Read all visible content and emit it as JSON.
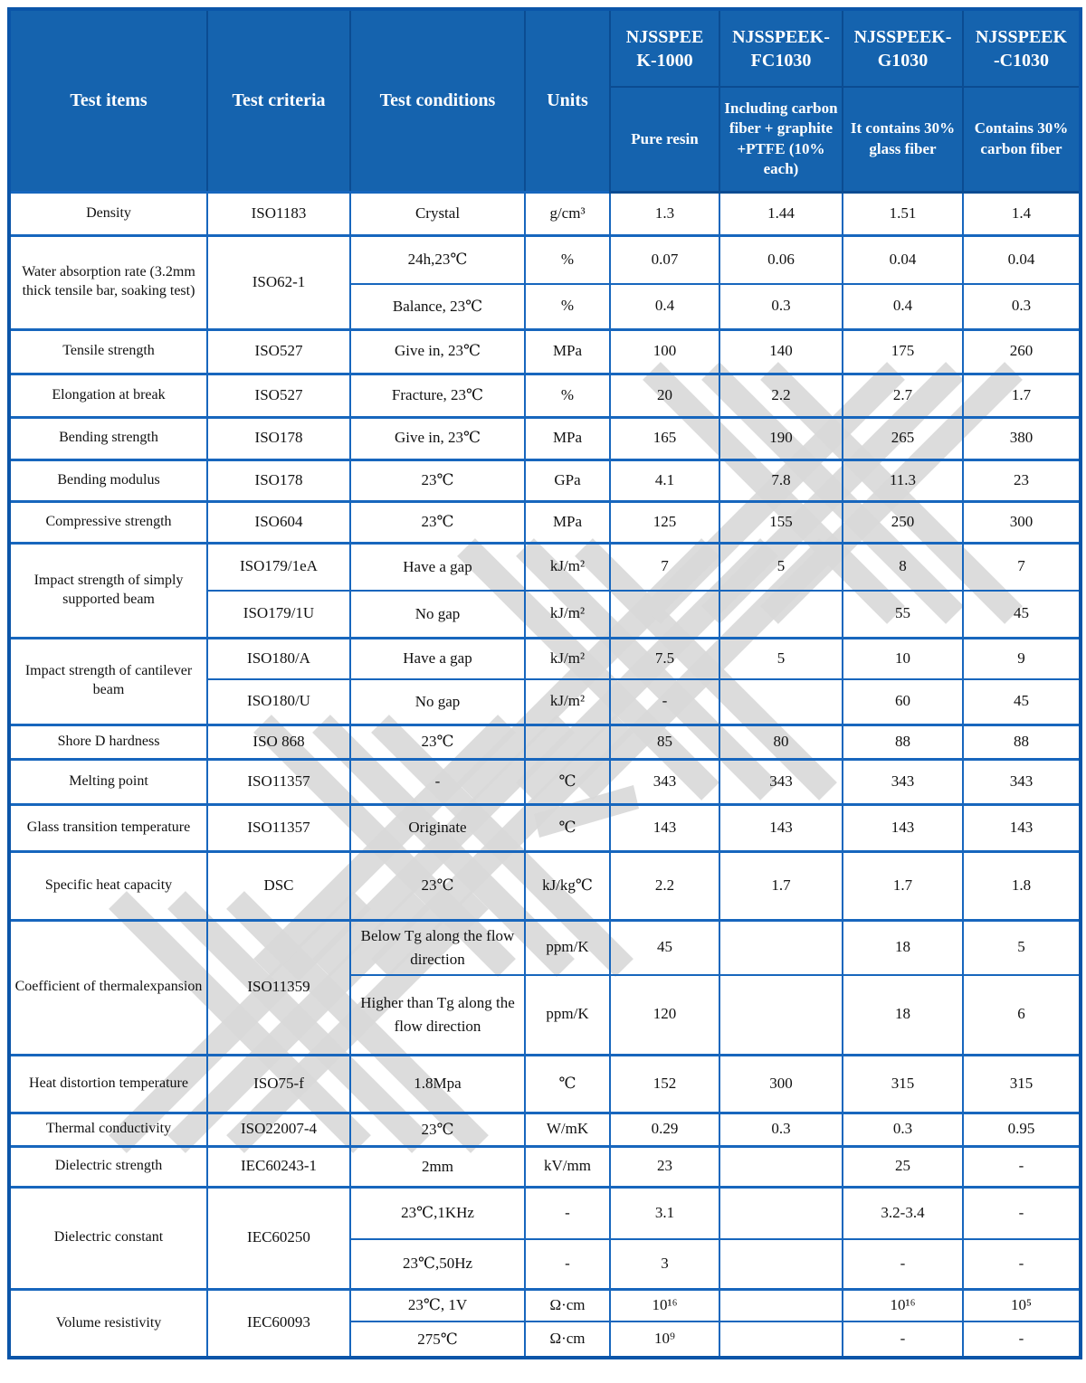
{
  "colors": {
    "header_bg": "#1563ae",
    "line": "#1766bd",
    "line_dark": "#0b4c92",
    "frame": "#0b55a8",
    "text": "#111111",
    "watermark": "#d8d8d8"
  },
  "watermark": {
    "text": "南京-首塑"
  },
  "header": {
    "columns": [
      "Test items",
      "Test criteria",
      "Test conditions",
      "Units"
    ],
    "products": [
      {
        "name": "NJSSPEE\nK-1000",
        "desc": "Pure resin"
      },
      {
        "name": "NJSSPEEK-\nFC1030",
        "desc": "Including carbon fiber + graphite +PTFE (10% each)"
      },
      {
        "name": "NJSSPEEK-\nG1030",
        "desc": "It contains 30% glass fiber"
      },
      {
        "name": "NJSSPEEK\n-C1030",
        "desc": "Contains 30% carbon fiber"
      }
    ]
  },
  "rows": [
    {
      "item": "Density",
      "criteria": "ISO1183",
      "condition": "Crystal",
      "unit": "g/cm³",
      "values": [
        "1.3",
        "1.44",
        "1.51",
        "1.4"
      ],
      "group": true
    },
    {
      "item": "Water absorption rate (3.2mm thick tensile bar, soaking test)",
      "item_span": 2,
      "criteria": "ISO62-1",
      "criteria_span": 2,
      "condition": "24h,23℃",
      "unit": "%",
      "values": [
        "0.07",
        "0.06",
        "0.04",
        "0.04"
      ],
      "group": true
    },
    {
      "condition": "Balance, 23℃",
      "unit": "%",
      "values": [
        "0.4",
        "0.3",
        "0.4",
        "0.3"
      ]
    },
    {
      "item": "Tensile strength",
      "criteria": "ISO527",
      "condition": "Give in, 23℃",
      "unit": "MPa",
      "values": [
        "100",
        "140",
        "175",
        "260"
      ],
      "group": true
    },
    {
      "item": "Elongation at break",
      "criteria": "ISO527",
      "condition": "Fracture, 23℃",
      "unit": "%",
      "values": [
        "20",
        "2.2",
        "2.7",
        "1.7"
      ],
      "group": true
    },
    {
      "item": "Bending strength",
      "criteria": "ISO178",
      "condition": "Give in, 23℃",
      "unit": "MPa",
      "values": [
        "165",
        "190",
        "265",
        "380"
      ],
      "group": true
    },
    {
      "item": "Bending modulus",
      "criteria": "ISO178",
      "condition": "23℃",
      "unit": "GPa",
      "values": [
        "4.1",
        "7.8",
        "11.3",
        "23"
      ],
      "group": true
    },
    {
      "item": "Compressive strength",
      "criteria": "ISO604",
      "condition": "23℃",
      "unit": "MPa",
      "values": [
        "125",
        "155",
        "250",
        "300"
      ],
      "group": true
    },
    {
      "item": "Impact strength of simply supported beam",
      "item_span": 2,
      "criteria": "ISO179/1eA",
      "condition": "Have a gap",
      "unit": "kJ/m²",
      "values": [
        "7",
        "5",
        "8",
        "7"
      ],
      "group": true
    },
    {
      "criteria": "ISO179/1U",
      "condition": "No gap",
      "unit": "kJ/m²",
      "values": [
        "",
        "",
        "55",
        "45"
      ]
    },
    {
      "item": "Impact strength of cantilever beam",
      "item_span": 2,
      "criteria": "ISO180/A",
      "condition": "Have a gap",
      "unit": "kJ/m²",
      "values": [
        "7.5",
        "5",
        "10",
        "9"
      ],
      "group": true
    },
    {
      "criteria": "ISO180/U",
      "condition": "No gap",
      "unit": "kJ/m²",
      "values": [
        "-",
        "",
        "60",
        "45"
      ]
    },
    {
      "item": "Shore D hardness",
      "criteria": "ISO 868",
      "condition": "23℃",
      "unit": "",
      "values": [
        "85",
        "80",
        "88",
        "88"
      ],
      "group": true
    },
    {
      "item": "Melting point",
      "criteria": "ISO11357",
      "condition": "-",
      "unit": "℃",
      "values": [
        "343",
        "343",
        "343",
        "343"
      ],
      "group": true
    },
    {
      "item": "Glass transition temperature",
      "criteria": "ISO11357",
      "condition": "Originate",
      "unit": "℃",
      "values": [
        "143",
        "143",
        "143",
        "143"
      ],
      "group": true
    },
    {
      "item": "Specific heat capacity",
      "criteria": "DSC",
      "condition": "23℃",
      "unit": "kJ/kg℃",
      "values": [
        "2.2",
        "1.7",
        "1.7",
        "1.8"
      ],
      "group": true
    },
    {
      "item": "Coefficient of thermalexpansion",
      "item_span": 2,
      "criteria": "ISO11359",
      "criteria_span": 2,
      "condition": "Below Tg along the flow direction",
      "unit": "ppm/K",
      "values": [
        "45",
        "",
        "18",
        "5"
      ],
      "group": true
    },
    {
      "condition": "Higher than Tg along the flow direction",
      "unit": "ppm/K",
      "values": [
        "120",
        "",
        "18",
        "6"
      ]
    },
    {
      "item": "Heat distortion temperature",
      "criteria": "ISO75-f",
      "condition": "1.8Mpa",
      "unit": "℃",
      "values": [
        "152",
        "300",
        "315",
        "315"
      ],
      "group": true
    },
    {
      "item": "Thermal conductivity",
      "criteria": "ISO22007-4",
      "condition": "23℃",
      "unit": "W/mK",
      "values": [
        "0.29",
        "0.3",
        "0.3",
        "0.95"
      ],
      "group": true
    },
    {
      "item": "Dielectric strength",
      "criteria": "IEC60243-1",
      "condition": "2mm",
      "unit": "kV/mm",
      "values": [
        "23",
        "",
        "25",
        "-"
      ],
      "group": true
    },
    {
      "item": "Dielectric constant",
      "item_span": 2,
      "criteria": "IEC60250",
      "criteria_span": 2,
      "condition": "23℃,1KHz",
      "unit": "-",
      "values": [
        "3.1",
        "",
        "3.2-3.4",
        "-"
      ],
      "group": true
    },
    {
      "condition": "23℃,50Hz",
      "unit": "-",
      "values": [
        "3",
        "",
        "-",
        "-"
      ]
    },
    {
      "item": "Volume resistivity",
      "item_span": 2,
      "criteria": "IEC60093",
      "criteria_span": 2,
      "condition": "23℃, 1V",
      "unit": "Ω·cm",
      "values": [
        "10¹⁶",
        "",
        "10¹⁶",
        "10⁵"
      ],
      "group": true
    },
    {
      "condition": "275℃",
      "unit": "Ω·cm",
      "values": [
        "10⁹",
        "",
        "-",
        "-"
      ]
    }
  ]
}
